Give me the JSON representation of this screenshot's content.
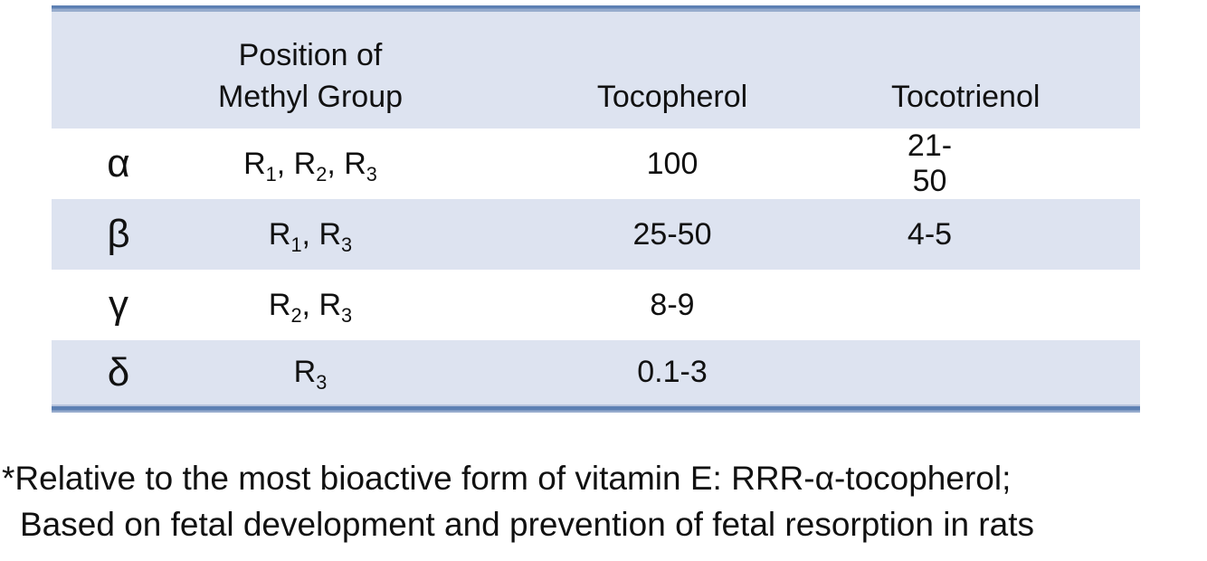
{
  "table": {
    "header": {
      "form_column_label": "",
      "position_line1": "Position of",
      "position_line2": "Methyl Group",
      "tocopherol_label": "Tocopherol",
      "tocotrienol_label": "Tocotrienol"
    },
    "rows": [
      {
        "form": "α",
        "methyl_positions": "R_1, R_2, R_3",
        "tocopherol": "100",
        "tocotrienol": "21-50"
      },
      {
        "form": "β",
        "methyl_positions": "R_1, R_3",
        "tocopherol": "25-50",
        "tocotrienol": "4-5"
      },
      {
        "form": "γ",
        "methyl_positions": "R_2, R_3",
        "tocopherol": "8-9",
        "tocotrienol": ""
      },
      {
        "form": "δ",
        "methyl_positions": "R_3",
        "tocopherol": "0.1-3",
        "tocotrienol": ""
      }
    ]
  },
  "footnote": {
    "line1": "*Relative to the most bioactive form of vitamin E: RRR-α-tocopherol;",
    "line2": "Based on fetal development and prevention of fetal resorption in rats"
  },
  "colors": {
    "band": "#dde3f0",
    "rule-dark": "#5d80b3",
    "rule-light": "#97accd",
    "text": "#111111"
  }
}
